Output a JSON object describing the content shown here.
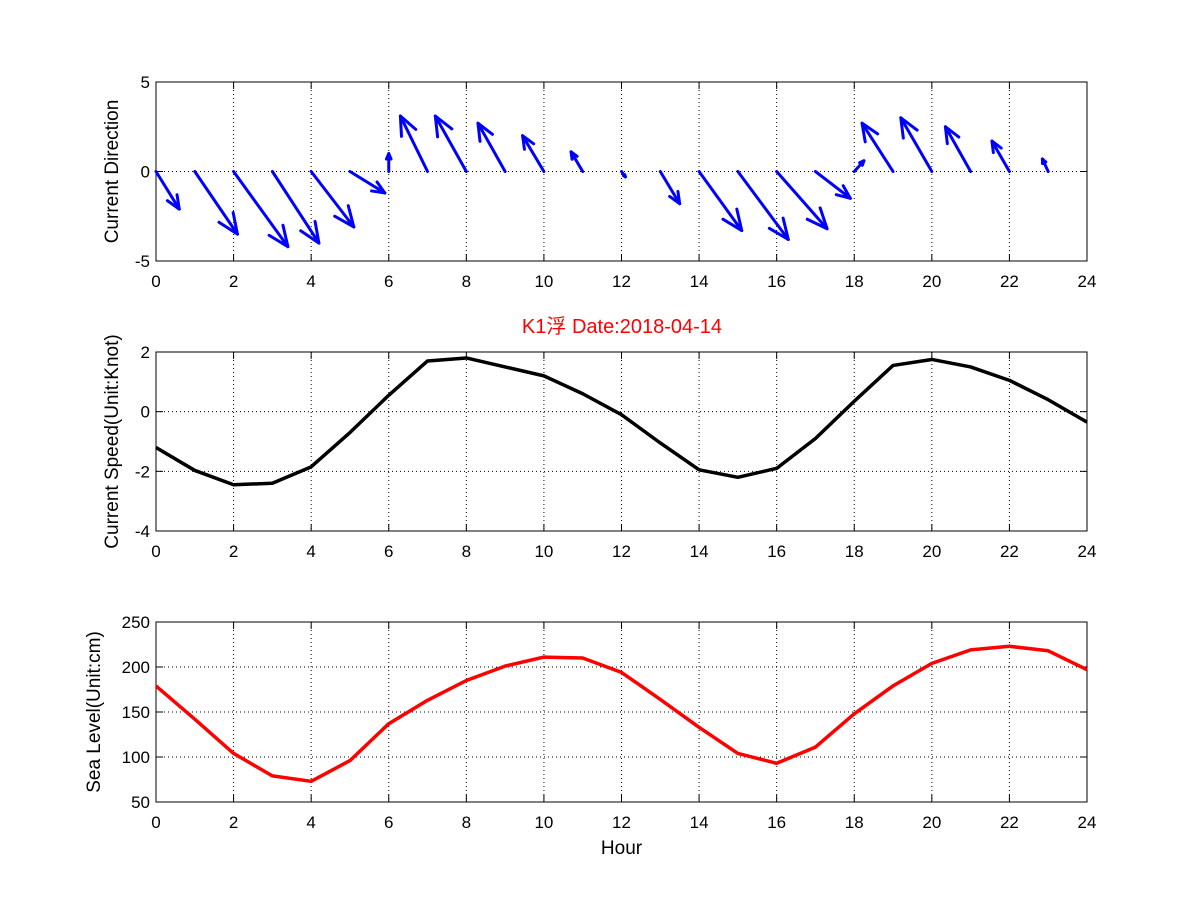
{
  "figure": {
    "title": "K1浮    Date:2018-04-14",
    "title_color": "#ff0000"
  },
  "chart_data": [
    {
      "type": "quiver",
      "ylabel": "Current Direction",
      "xlabel": "",
      "xlim": [
        0,
        24
      ],
      "ylim": [
        -5,
        5
      ],
      "xticks": [
        0,
        2,
        4,
        6,
        8,
        10,
        12,
        14,
        16,
        18,
        20,
        22,
        24
      ],
      "yticks": [
        -5,
        0,
        5
      ],
      "grid": true,
      "color": "#0000ff",
      "x": [
        0,
        1,
        2,
        3,
        4,
        5,
        6,
        7,
        8,
        9,
        10,
        11,
        12,
        13,
        14,
        15,
        16,
        17,
        18,
        19,
        20,
        21,
        22,
        23
      ],
      "u": [
        0.6,
        1.1,
        1.4,
        1.2,
        1.1,
        0.9,
        0.0,
        -0.7,
        -0.8,
        -0.7,
        -0.55,
        -0.3,
        0.1,
        0.5,
        1.1,
        1.3,
        1.3,
        0.9,
        0.25,
        -0.8,
        -0.8,
        -0.65,
        -0.45,
        -0.15
      ],
      "v": [
        -2.1,
        -3.5,
        -4.2,
        -4.0,
        -3.1,
        -1.2,
        1.0,
        3.1,
        3.1,
        2.7,
        2.0,
        1.1,
        -0.3,
        -1.8,
        -3.3,
        -3.8,
        -3.2,
        -1.5,
        0.6,
        2.7,
        3.0,
        2.5,
        1.7,
        0.7
      ]
    },
    {
      "type": "line",
      "ylabel": "Current Speed(Unit:Knot)",
      "xlabel": "",
      "xlim": [
        0,
        24
      ],
      "ylim": [
        -4,
        2
      ],
      "xticks": [
        0,
        2,
        4,
        6,
        8,
        10,
        12,
        14,
        16,
        18,
        20,
        22,
        24
      ],
      "yticks": [
        -4,
        -2,
        0,
        2
      ],
      "grid": true,
      "series": [
        {
          "color": "#000000",
          "x": [
            0,
            1,
            2,
            3,
            4,
            5,
            6,
            7,
            8,
            9,
            10,
            11,
            12,
            13,
            14,
            15,
            16,
            17,
            18,
            19,
            20,
            21,
            22,
            23,
            24
          ],
          "values": [
            -1.2,
            -1.97,
            -2.45,
            -2.4,
            -1.85,
            -0.7,
            0.55,
            1.7,
            1.8,
            1.5,
            1.2,
            0.6,
            -0.1,
            -1.05,
            -1.95,
            -2.2,
            -1.9,
            -0.9,
            0.35,
            1.55,
            1.75,
            1.5,
            1.05,
            0.4,
            -0.35
          ]
        }
      ]
    },
    {
      "type": "line",
      "ylabel": "Sea Level(Unit:cm)",
      "xlabel": "Hour",
      "xlim": [
        0,
        24
      ],
      "ylim": [
        50,
        250
      ],
      "xticks": [
        0,
        2,
        4,
        6,
        8,
        10,
        12,
        14,
        16,
        18,
        20,
        22,
        24
      ],
      "yticks": [
        50,
        100,
        150,
        200,
        250
      ],
      "grid": true,
      "series": [
        {
          "color": "#ff0000",
          "x": [
            0,
            1,
            2,
            3,
            4,
            5,
            6,
            7,
            8,
            9,
            10,
            11,
            12,
            13,
            14,
            15,
            16,
            17,
            18,
            19,
            20,
            21,
            22,
            23,
            24
          ],
          "values": [
            179,
            142,
            104,
            79,
            73,
            96,
            137,
            163,
            185,
            201,
            211,
            210,
            194,
            164,
            133,
            104,
            93,
            111,
            148,
            179,
            204,
            219,
            223,
            218,
            197
          ]
        }
      ]
    }
  ]
}
